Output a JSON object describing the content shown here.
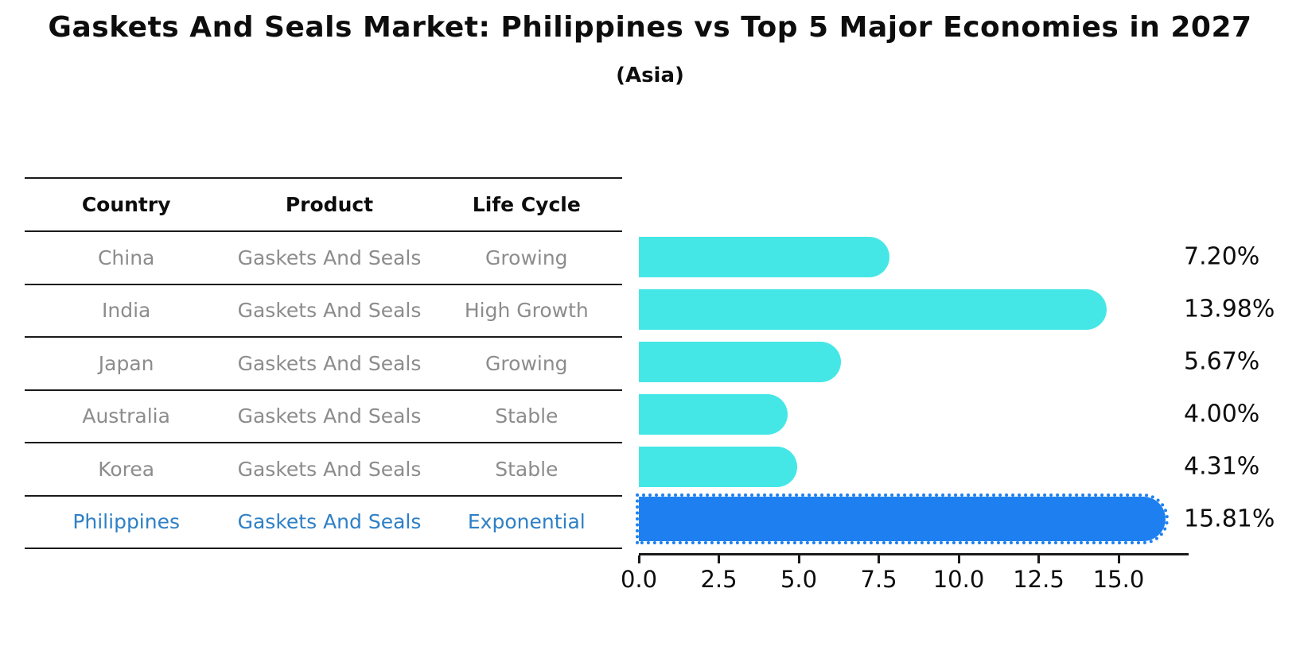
{
  "title": "Gaskets And Seals Market: Philippines vs Top 5 Major Economies in 2027",
  "subtitle": "(Asia)",
  "colors": {
    "bar": "#45e7e6",
    "highlight_bar": "#1e80f0",
    "highlight_text": "#2e80c6",
    "row_text": "#8c8c8c",
    "grid_line": "#1a1a1a"
  },
  "table": {
    "headers": [
      "Country",
      "Product",
      "Life Cycle"
    ],
    "rows": [
      {
        "country": "China",
        "product": "Gaskets And Seals",
        "life_cycle": "Growing"
      },
      {
        "country": "India",
        "product": "Gaskets And Seals",
        "life_cycle": "High Growth"
      },
      {
        "country": "Japan",
        "product": "Gaskets And Seals",
        "life_cycle": "Growing"
      },
      {
        "country": "Australia",
        "product": "Gaskets And Seals",
        "life_cycle": "Stable"
      },
      {
        "country": "Korea",
        "product": "Gaskets And Seals",
        "life_cycle": "Stable"
      },
      {
        "country": "Philippines",
        "product": "Gaskets And Seals",
        "life_cycle": "Exponential"
      }
    ]
  },
  "chart_data": {
    "type": "bar",
    "orientation": "horizontal",
    "title": "Gaskets And Seals Market: Philippines vs Top 5 Major Economies in 2027 (Asia)",
    "categories": [
      "China",
      "India",
      "Japan",
      "Australia",
      "Korea",
      "Philippines"
    ],
    "values": [
      7.2,
      13.98,
      5.67,
      4.0,
      4.31,
      15.81
    ],
    "value_labels": [
      "7.20%",
      "13.98%",
      "5.67%",
      "4.00%",
      "4.31%",
      "15.81%"
    ],
    "highlight_index": 5,
    "xlabel": "",
    "ylabel": "",
    "xlim": [
      0.0,
      17.2
    ],
    "x_ticks": [
      0.0,
      2.5,
      5.0,
      7.5,
      10.0,
      12.5,
      15.0
    ],
    "x_tick_labels": [
      "0.0",
      "2.5",
      "5.0",
      "7.5",
      "10.0",
      "12.5",
      "15.0"
    ],
    "grid": false,
    "legend": null
  }
}
